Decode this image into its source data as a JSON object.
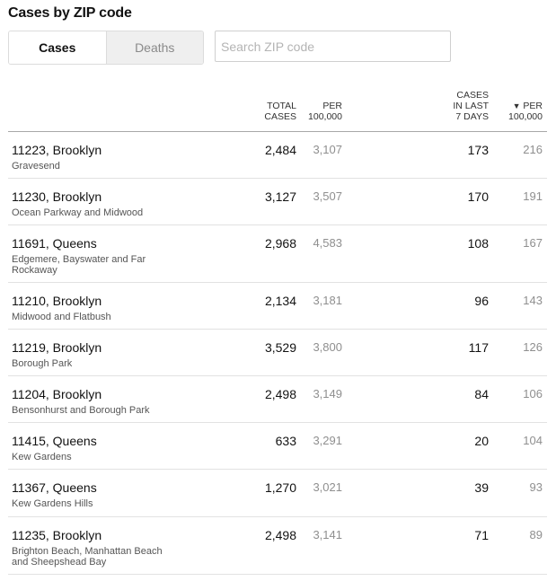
{
  "title": "Cases by ZIP code",
  "toggle": {
    "cases_label": "Cases",
    "deaths_label": "Deaths"
  },
  "search": {
    "placeholder": "Search ZIP code"
  },
  "columns": {
    "total_cases": [
      "TOTAL",
      "CASES"
    ],
    "per_100k": [
      "PER",
      "100,000"
    ],
    "cases_last_7": [
      "CASES",
      "IN LAST",
      "7 DAYS"
    ],
    "sort_arrow": "▼",
    "per_100k_7": [
      "PER",
      "100,000"
    ]
  },
  "rows": [
    {
      "zip": "11223, Brooklyn",
      "hood": "Gravesend",
      "total": "2,484",
      "per": "3,107",
      "last7": "173",
      "per7": "216"
    },
    {
      "zip": "11230, Brooklyn",
      "hood": "Ocean Parkway and Midwood",
      "total": "3,127",
      "per": "3,507",
      "last7": "170",
      "per7": "191"
    },
    {
      "zip": "11691, Queens",
      "hood": "Edgemere, Bayswater and Far Rockaway",
      "total": "2,968",
      "per": "4,583",
      "last7": "108",
      "per7": "167"
    },
    {
      "zip": "11210, Brooklyn",
      "hood": "Midwood and Flatbush",
      "total": "2,134",
      "per": "3,181",
      "last7": "96",
      "per7": "143"
    },
    {
      "zip": "11219, Brooklyn",
      "hood": "Borough Park",
      "total": "3,529",
      "per": "3,800",
      "last7": "117",
      "per7": "126"
    },
    {
      "zip": "11204, Brooklyn",
      "hood": "Bensonhurst and Borough Park",
      "total": "2,498",
      "per": "3,149",
      "last7": "84",
      "per7": "106"
    },
    {
      "zip": "11415, Queens",
      "hood": "Kew Gardens",
      "total": "633",
      "per": "3,291",
      "last7": "20",
      "per7": "104"
    },
    {
      "zip": "11367, Queens",
      "hood": "Kew Gardens Hills",
      "total": "1,270",
      "per": "3,021",
      "last7": "39",
      "per7": "93"
    },
    {
      "zip": "11235, Brooklyn",
      "hood": "Brighton Beach, Manhattan Beach and Sheepshead Bay",
      "total": "2,498",
      "per": "3,141",
      "last7": "71",
      "per7": "89"
    }
  ]
}
